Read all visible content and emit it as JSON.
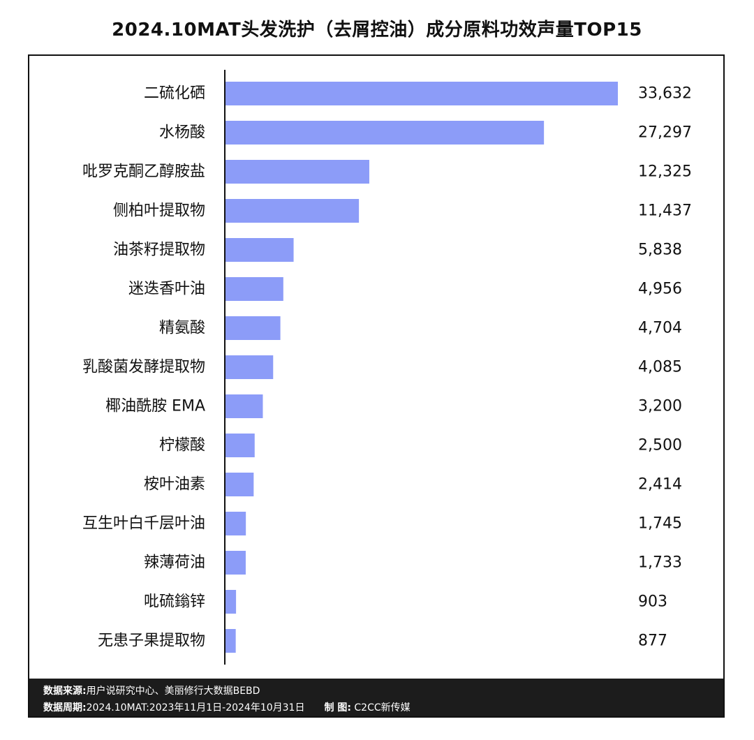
{
  "title": "2024.10MAT头发洗护（去屑控油）成分原料功效声量TOP15",
  "colors": {
    "bar": "#8C9CF8",
    "axis": "#111111",
    "footer_bg": "#1c1c1c"
  },
  "chart_data": {
    "type": "bar",
    "orientation": "horizontal",
    "categories": [
      "二硫化硒",
      "水杨酸",
      "吡罗克酮乙醇胺盐",
      "侧柏叶提取物",
      "油茶籽提取物",
      "迷迭香叶油",
      "精氨酸",
      "乳酸菌发酵提取物",
      "椰油酰胺 EMA",
      "柠檬酸",
      "桉叶油素",
      "互生叶白千层叶油",
      "辣薄荷油",
      "吡硫鎓锌",
      "无患子果提取物"
    ],
    "values": [
      33632,
      27297,
      12325,
      11437,
      5838,
      4956,
      4704,
      4085,
      3200,
      2500,
      2414,
      1745,
      1733,
      903,
      877
    ],
    "value_labels": [
      "33,632",
      "27,297",
      "12,325",
      "11,437",
      "5,838",
      "4,956",
      "4,704",
      "4,085",
      "3,200",
      "2,500",
      "2,414",
      "1,745",
      "1,733",
      "903",
      "877"
    ],
    "xlim": [
      0,
      33632
    ],
    "grid": false,
    "legend": "none"
  },
  "footer": {
    "source_label": "数据来源:",
    "source_value": "用户说研究中心、美丽修行大数据BEBD",
    "period_label": "数据周期:",
    "period_value": "2024.10MAT:2023年11月1日-2024年10月31日",
    "made_label": "制  图:",
    "made_value": "C2CC新传媒"
  }
}
